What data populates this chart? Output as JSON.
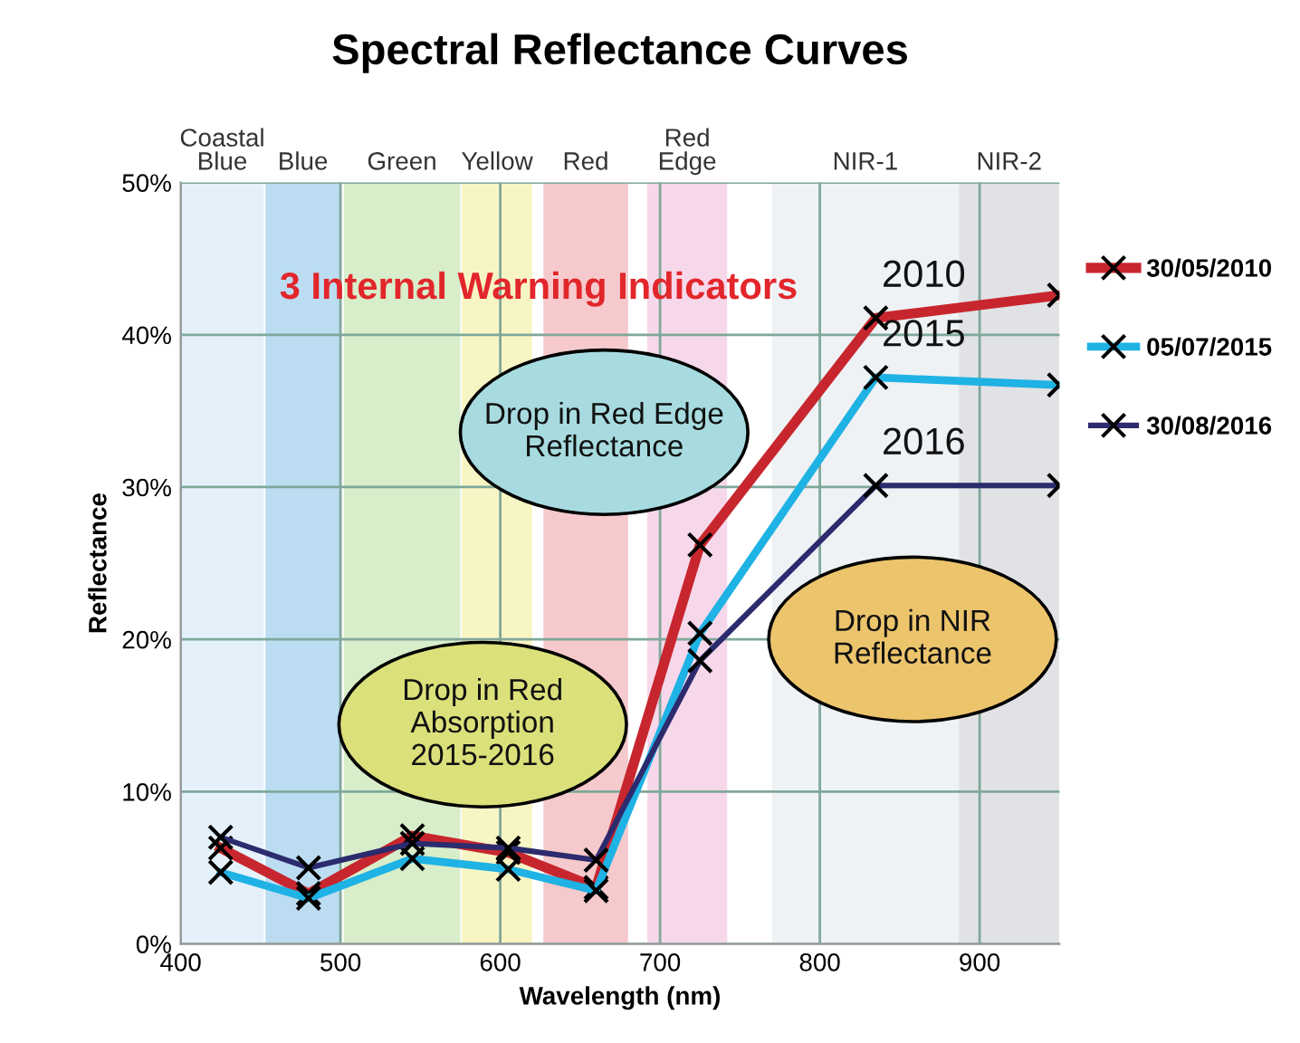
{
  "chart_data": {
    "type": "line",
    "title": "Spectral Reflectance Curves",
    "xlabel": "Wavelength (nm)",
    "ylabel": "Reflectance",
    "x": [
      425,
      480,
      545,
      605,
      660,
      725,
      835,
      950
    ],
    "series": [
      {
        "name": "30/05/2010",
        "color": "#c8262e",
        "values": [
          6.3,
          3.3,
          7.1,
          6.0,
          3.7,
          26.2,
          41.1,
          42.6
        ]
      },
      {
        "name": "05/07/2015",
        "color": "#1fb2e4",
        "values": [
          4.7,
          3.0,
          5.6,
          4.9,
          3.5,
          20.4,
          37.2,
          36.7
        ]
      },
      {
        "name": "30/08/2016",
        "color": "#2c2b6e",
        "values": [
          7.0,
          5.0,
          6.6,
          6.3,
          5.5,
          18.6,
          30.1,
          30.1
        ]
      }
    ],
    "xlim": [
      400,
      950
    ],
    "xticks": [
      400,
      500,
      600,
      700,
      800,
      900
    ],
    "ylim": [
      0,
      50
    ],
    "yticks": [
      {
        "value": 0,
        "label": "0%"
      },
      {
        "value": 10,
        "label": "10%"
      },
      {
        "value": 20,
        "label": "20%"
      },
      {
        "value": 30,
        "label": "30%"
      },
      {
        "value": 40,
        "label": "40%"
      },
      {
        "value": 50,
        "label": "50%"
      }
    ],
    "bands": [
      {
        "axis": "x",
        "from": 400,
        "to": 452,
        "label": "Coastal Blue",
        "color": "#e4f1fb"
      },
      {
        "axis": "x",
        "from": 453,
        "to": 500,
        "label": "Blue",
        "color": "#bcdcf2"
      },
      {
        "axis": "x",
        "from": 502,
        "to": 575,
        "label": "Green",
        "color": "#d8edc9"
      },
      {
        "axis": "x",
        "from": 576,
        "to": 620,
        "label": "Yellow",
        "color": "#f8f5c4"
      },
      {
        "axis": "x",
        "from": 627,
        "to": 680,
        "label": "Red",
        "color": "#f6c9cc"
      },
      {
        "axis": "x",
        "from": 692,
        "to": 742,
        "label": "Red Edge",
        "color": "#f6d8ea"
      },
      {
        "axis": "x",
        "from": 770,
        "to": 887,
        "label": "NIR-1",
        "color": "#eef2f5"
      },
      {
        "axis": "x",
        "from": 887,
        "to": 950,
        "label": "NIR-2",
        "color": "#e1e2e5"
      }
    ],
    "annotations": [
      "3 Internal Warning Indicators",
      "Drop in Red Edge\nReflectance",
      "Drop in Red\nAbsorption\n2015-2016",
      "Drop in NIR\nReflectance",
      "2010",
      "2015",
      "2016"
    ],
    "grid": true,
    "legend": "right",
    "marker": "cross",
    "line_style": "solid"
  }
}
